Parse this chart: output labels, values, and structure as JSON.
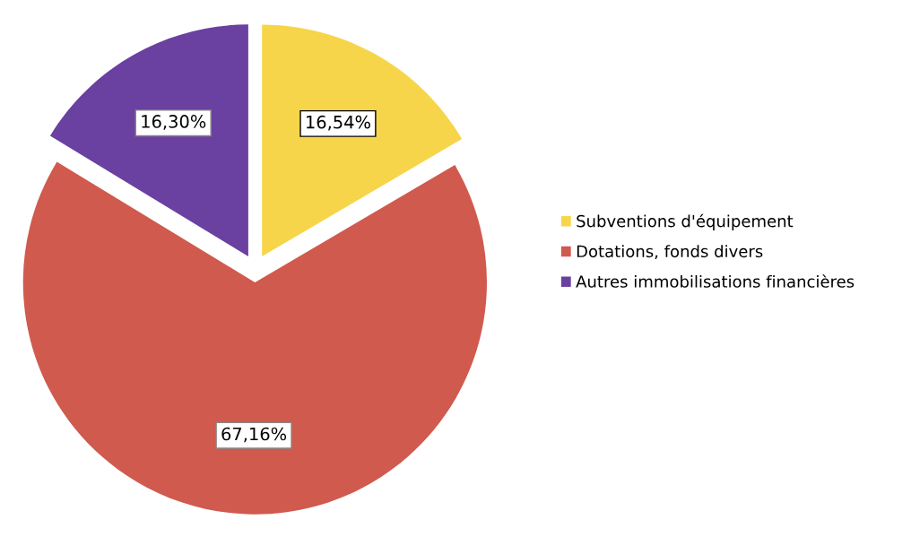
{
  "chart_data": {
    "type": "pie",
    "categories": [
      "Subventions d'équipement",
      "Dotations, fonds divers",
      "Autres immobilisations financières"
    ],
    "values": [
      16.54,
      67.16,
      16.3
    ],
    "value_labels": [
      "16,54%",
      "67,16%",
      "16,30%"
    ],
    "colors": [
      "#f7d54a",
      "#d05a4e",
      "#6a40a0"
    ],
    "legend": "right"
  }
}
